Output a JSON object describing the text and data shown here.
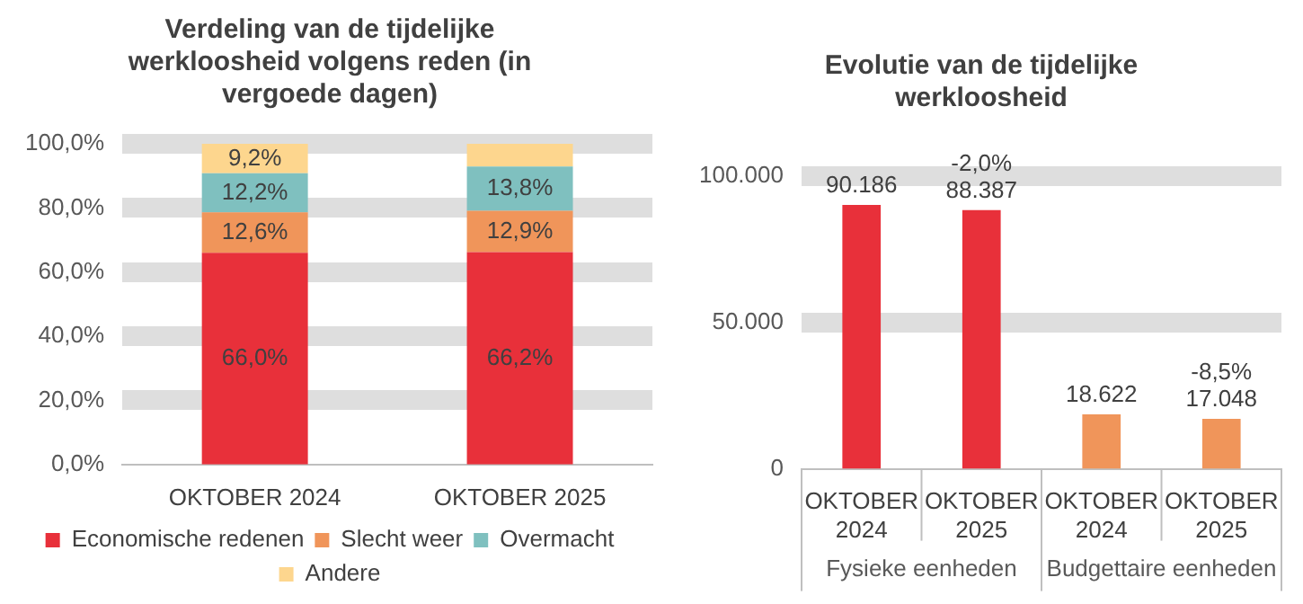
{
  "chart_data": [
    {
      "type": "bar",
      "title": "Verdeling van de tijdelijke werkloosheid volgens reden (in vergoede dagen)",
      "categories": [
        "OKTOBER 2024",
        "OKTOBER 2025"
      ],
      "stacked": true,
      "series": [
        {
          "name": "Economische redenen",
          "color": "#e8303a",
          "values": [
            66.0,
            66.2
          ],
          "value_labels": [
            "66,0%",
            "66,2%"
          ]
        },
        {
          "name": "Slecht weer",
          "color": "#f0955a",
          "values": [
            12.6,
            12.9
          ],
          "value_labels": [
            "12,6%",
            "12,9%"
          ]
        },
        {
          "name": "Overmacht",
          "color": "#7fc0bf",
          "values": [
            12.2,
            13.8
          ],
          "value_labels": [
            "12,2%",
            "13,8%"
          ]
        },
        {
          "name": "Andere",
          "color": "#fdd68e",
          "values": [
            9.2,
            7.1
          ],
          "value_labels": [
            "9,2%",
            null
          ]
        }
      ],
      "ylim": [
        0,
        100
      ],
      "yticks": [
        {
          "value": 0,
          "label": "0,0%"
        },
        {
          "value": 20,
          "label": "20,0%"
        },
        {
          "value": 40,
          "label": "40,0%"
        },
        {
          "value": 60,
          "label": "60,0%"
        },
        {
          "value": 80,
          "label": "80,0%"
        },
        {
          "value": 100,
          "label": "100,0%"
        }
      ],
      "grid": "y",
      "legend": "bottom"
    },
    {
      "type": "bar",
      "title": "Evolutie van de tijdelijke werkloosheid",
      "categories": [
        "OKTOBER 2024",
        "OKTOBER 2025",
        "OKTOBER 2024",
        "OKTOBER 2025"
      ],
      "values": [
        90186,
        88387,
        18622,
        17048
      ],
      "colors": [
        "#e8303a",
        "#e8303a",
        "#f0955a",
        "#f0955a"
      ],
      "value_labels": [
        "90.186",
        "-2,0%\n88.387",
        "18.622",
        "-8,5%\n17.048"
      ],
      "ylim": [
        0,
        100000
      ],
      "yticks": [
        0,
        {
          "value": 50000,
          "label": "50.000"
        },
        {
          "value": 100000,
          "label": "100.000"
        }
      ],
      "grid": "y",
      "annotations": [
        "Fysieke eenheden",
        "Budgettaire eenheden"
      ]
    }
  ]
}
